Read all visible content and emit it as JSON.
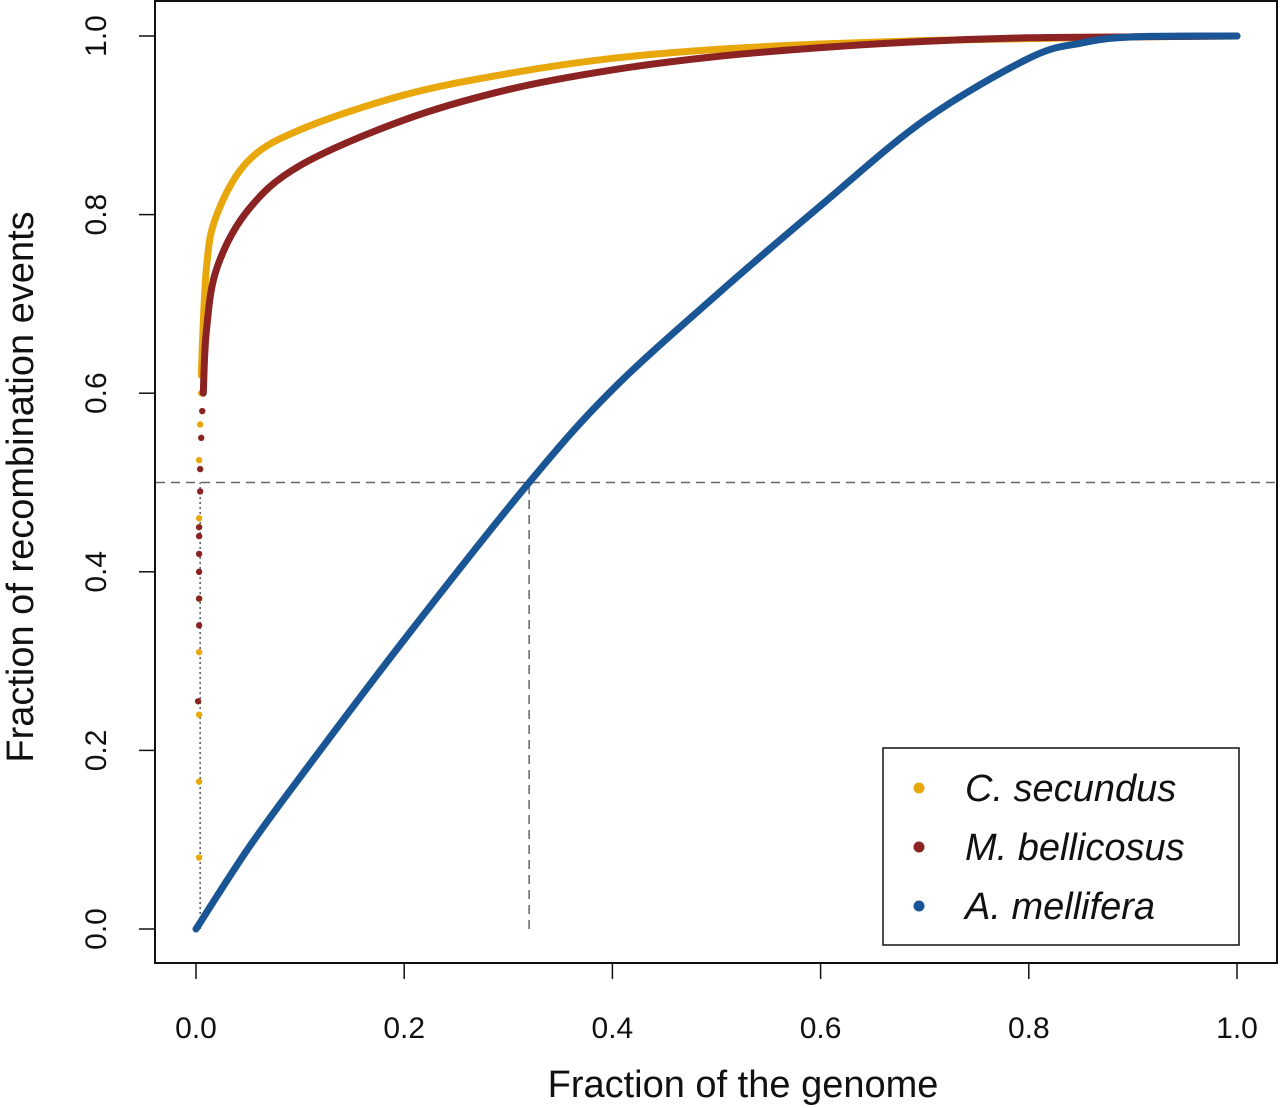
{
  "chart_data": {
    "type": "scatter",
    "xlabel": "Fraction of the genome",
    "ylabel": "Fraction of recombination events",
    "xlim": [
      0,
      1
    ],
    "ylim": [
      0,
      1
    ],
    "xticks": [
      "0.0",
      "0.2",
      "0.4",
      "0.6",
      "0.8",
      "1.0"
    ],
    "yticks": [
      "0.0",
      "0.2",
      "0.4",
      "0.6",
      "0.8",
      "1.0"
    ],
    "grid": false,
    "legend_position": "bottom-right",
    "reference_lines": {
      "horizontal_y": 0.5,
      "vertical_dashed_x": 0.32,
      "vertical_dotted_x": 0.004
    },
    "series": [
      {
        "name": "C. secundus",
        "color": "#E8A80C",
        "scatter_points": [
          [
            0.003,
            0.08
          ],
          [
            0.003,
            0.165
          ],
          [
            0.003,
            0.24
          ],
          [
            0.003,
            0.31
          ],
          [
            0.003,
            0.37
          ],
          [
            0.003,
            0.46
          ],
          [
            0.003,
            0.525
          ],
          [
            0.004,
            0.565
          ],
          [
            0.005,
            0.6
          ]
        ],
        "curve": [
          [
            0.005,
            0.62
          ],
          [
            0.01,
            0.74
          ],
          [
            0.02,
            0.8
          ],
          [
            0.05,
            0.86
          ],
          [
            0.1,
            0.895
          ],
          [
            0.2,
            0.934
          ],
          [
            0.3,
            0.958
          ],
          [
            0.4,
            0.975
          ],
          [
            0.5,
            0.985
          ],
          [
            0.6,
            0.991
          ],
          [
            0.7,
            0.995
          ],
          [
            0.8,
            0.997
          ],
          [
            0.9,
            0.999
          ],
          [
            1.0,
            1.0
          ]
        ]
      },
      {
        "name": "M. bellicosus",
        "color": "#8B2323",
        "scatter_points": [
          [
            0.002,
            0.255
          ],
          [
            0.003,
            0.34
          ],
          [
            0.003,
            0.37
          ],
          [
            0.003,
            0.4
          ],
          [
            0.003,
            0.42
          ],
          [
            0.003,
            0.44
          ],
          [
            0.003,
            0.45
          ],
          [
            0.004,
            0.49
          ],
          [
            0.004,
            0.515
          ],
          [
            0.005,
            0.55
          ],
          [
            0.006,
            0.58
          ]
        ],
        "curve": [
          [
            0.007,
            0.6
          ],
          [
            0.01,
            0.67
          ],
          [
            0.02,
            0.74
          ],
          [
            0.05,
            0.805
          ],
          [
            0.1,
            0.855
          ],
          [
            0.2,
            0.906
          ],
          [
            0.3,
            0.94
          ],
          [
            0.4,
            0.962
          ],
          [
            0.5,
            0.977
          ],
          [
            0.6,
            0.987
          ],
          [
            0.7,
            0.994
          ],
          [
            0.8,
            0.998
          ],
          [
            0.9,
            0.999
          ],
          [
            1.0,
            1.0
          ]
        ]
      },
      {
        "name": "A. mellifera",
        "color": "#1A5596",
        "scatter_points": [],
        "curve": [
          [
            0.0,
            0.0
          ],
          [
            0.05,
            0.09
          ],
          [
            0.1,
            0.17
          ],
          [
            0.2,
            0.324
          ],
          [
            0.32,
            0.5
          ],
          [
            0.4,
            0.604
          ],
          [
            0.5,
            0.71
          ],
          [
            0.6,
            0.81
          ],
          [
            0.7,
            0.906
          ],
          [
            0.8,
            0.975
          ],
          [
            0.85,
            0.992
          ],
          [
            0.9,
            0.999
          ],
          [
            1.0,
            1.0
          ]
        ]
      }
    ]
  }
}
